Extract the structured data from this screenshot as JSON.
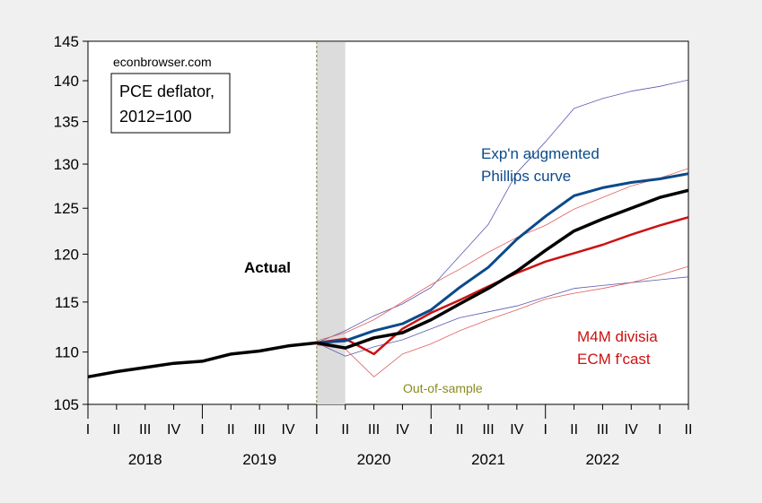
{
  "chart_data": {
    "type": "line",
    "source_label": "econbrowser.com",
    "title_line1": "PCE deflator,",
    "title_line2": "2012=100",
    "yticks": [
      105,
      110,
      115,
      120,
      125,
      130,
      135,
      140,
      145
    ],
    "ylim": [
      105,
      145
    ],
    "y_scale": "log",
    "quarters": [
      "I",
      "II",
      "III",
      "IV",
      "I",
      "II",
      "III",
      "IV",
      "I",
      "II",
      "III",
      "IV",
      "I",
      "II",
      "III",
      "IV",
      "I",
      "II",
      "III",
      "IV",
      "I",
      "II"
    ],
    "years": [
      "2018",
      "2019",
      "2020",
      "2021",
      "2022"
    ],
    "shaded_period": {
      "from_quarter": 8,
      "to_quarter": 9
    },
    "forecast_start_quarter": 8,
    "annotations": {
      "actual": "Actual",
      "phillips_line1": "Exp'n augmented",
      "phillips_line2": "Phillips curve",
      "m4m_line1": "M4M divisia",
      "m4m_line2": "ECM f'cast",
      "out_of_sample": "Out-of-sample"
    },
    "colors": {
      "actual": "#000000",
      "phillips": "#0b4a8a",
      "phillips_band": "#5a5ab0",
      "ecm": "#cc1111",
      "ecm_band": "#e06060",
      "shade": "#dcdcdc",
      "vline": "#808040",
      "out_of_sample": "#8a8a20"
    },
    "series": [
      {
        "key": "actual",
        "start": 0,
        "values": [
          107.6,
          108.1,
          108.5,
          108.9,
          109.1,
          109.8,
          110.1,
          110.6,
          110.9,
          110.4,
          111.4,
          111.9,
          113.2,
          114.8,
          116.4,
          118.2,
          120.4,
          122.5,
          123.8,
          125.0,
          126.2,
          127.0
        ]
      },
      {
        "key": "phillips",
        "start": 8,
        "values": [
          110.9,
          111.1,
          112.1,
          112.8,
          114.2,
          116.5,
          118.6,
          121.6,
          124.1,
          126.4,
          127.3,
          127.9,
          128.3,
          128.9
        ]
      },
      {
        "key": "phillips_upper",
        "start": 8,
        "values": [
          110.9,
          112.1,
          113.6,
          114.8,
          116.5,
          119.8,
          123.2,
          129.0,
          132.6,
          136.6,
          137.8,
          138.7,
          139.3,
          140.1
        ]
      },
      {
        "key": "phillips_lower",
        "start": 8,
        "values": [
          110.9,
          109.6,
          110.5,
          111.2,
          112.3,
          113.4,
          114.0,
          114.6,
          115.5,
          116.4,
          116.7,
          117.0,
          117.3,
          117.6
        ]
      },
      {
        "key": "ecm",
        "start": 8,
        "values": [
          110.9,
          111.3,
          109.8,
          112.3,
          113.9,
          115.2,
          116.6,
          118.0,
          119.2,
          120.1,
          121.0,
          122.1,
          123.1,
          124.0
        ]
      },
      {
        "key": "ecm_upper",
        "start": 8,
        "values": [
          111.1,
          111.9,
          113.2,
          115.0,
          116.8,
          118.4,
          120.2,
          121.8,
          123.1,
          124.9,
          126.2,
          127.5,
          128.4,
          129.5
        ]
      },
      {
        "key": "ecm_lower",
        "start": 8,
        "values": [
          110.7,
          110.3,
          107.6,
          109.8,
          110.8,
          112.1,
          113.2,
          114.2,
          115.3,
          115.9,
          116.4,
          117.0,
          117.8,
          118.7
        ]
      }
    ]
  }
}
